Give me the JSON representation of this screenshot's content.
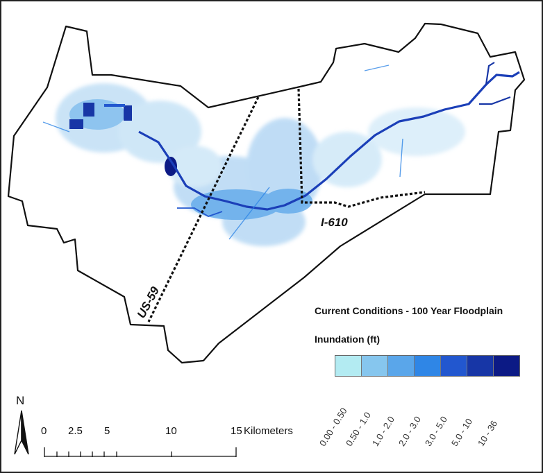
{
  "map": {
    "highways": [
      {
        "name": "US-59"
      },
      {
        "name": "I-610"
      }
    ]
  },
  "legend": {
    "title": "Current Conditions - 100 Year Floodplain",
    "subtitle": "Inundation (ft)",
    "classes": [
      {
        "label": "0.00 - 0.50",
        "color": "#b3ebf2"
      },
      {
        "label": "0.50 - 1.0",
        "color": "#86c6ee"
      },
      {
        "label": "1.0 - 2.0",
        "color": "#5aa6ea"
      },
      {
        "label": "2.0 - 3.0",
        "color": "#2f86e6"
      },
      {
        "label": "3.0 - 5.0",
        "color": "#2257cf"
      },
      {
        "label": "5.0 - 10",
        "color": "#1736a6"
      },
      {
        "label": "10 - 36",
        "color": "#0c1a85"
      }
    ]
  },
  "north_arrow": {
    "letter": "N"
  },
  "scale_bar": {
    "ticks": [
      "0",
      "2.5",
      "5",
      "10",
      "15"
    ],
    "units": "Kilometers"
  }
}
